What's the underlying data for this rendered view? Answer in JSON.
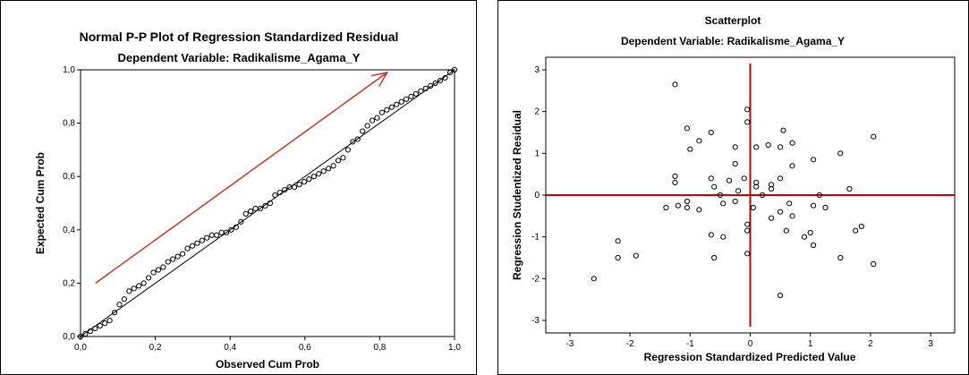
{
  "chart_data": [
    {
      "type": "scatter",
      "title": "Normal P-P Plot of Regression Standardized Residual",
      "subtitle": "Dependent Variable: Radikalisme_Agama_Y",
      "xlabel": "Observed Cum Prob",
      "ylabel": "Expected Cum Prob",
      "xlim": [
        0,
        1
      ],
      "ylim": [
        0,
        1
      ],
      "xticks": [
        "0,0",
        "0,2",
        "0,4",
        "0,6",
        "0,8",
        "1,0"
      ],
      "yticks": [
        "0,0",
        "0,2",
        "0,4",
        "0,6",
        "0,8",
        "1,0"
      ],
      "reference_line": [
        [
          0,
          0
        ],
        [
          1,
          1
        ]
      ],
      "annotation_arrow": {
        "from": [
          0.04,
          0.2
        ],
        "to": [
          0.82,
          0.99
        ],
        "color": "#c0392b"
      },
      "points": [
        [
          0.0,
          0.0
        ],
        [
          0.013,
          0.01
        ],
        [
          0.026,
          0.02
        ],
        [
          0.039,
          0.03
        ],
        [
          0.052,
          0.04
        ],
        [
          0.065,
          0.05
        ],
        [
          0.078,
          0.06
        ],
        [
          0.091,
          0.09
        ],
        [
          0.104,
          0.12
        ],
        [
          0.117,
          0.14
        ],
        [
          0.13,
          0.17
        ],
        [
          0.143,
          0.18
        ],
        [
          0.156,
          0.19
        ],
        [
          0.169,
          0.2
        ],
        [
          0.182,
          0.22
        ],
        [
          0.195,
          0.24
        ],
        [
          0.208,
          0.25
        ],
        [
          0.221,
          0.26
        ],
        [
          0.234,
          0.28
        ],
        [
          0.247,
          0.29
        ],
        [
          0.26,
          0.3
        ],
        [
          0.273,
          0.31
        ],
        [
          0.286,
          0.33
        ],
        [
          0.299,
          0.34
        ],
        [
          0.312,
          0.35
        ],
        [
          0.325,
          0.36
        ],
        [
          0.338,
          0.37
        ],
        [
          0.351,
          0.38
        ],
        [
          0.364,
          0.38
        ],
        [
          0.377,
          0.39
        ],
        [
          0.39,
          0.39
        ],
        [
          0.403,
          0.4
        ],
        [
          0.416,
          0.41
        ],
        [
          0.429,
          0.43
        ],
        [
          0.442,
          0.46
        ],
        [
          0.455,
          0.47
        ],
        [
          0.468,
          0.48
        ],
        [
          0.481,
          0.48
        ],
        [
          0.494,
          0.49
        ],
        [
          0.507,
          0.5
        ],
        [
          0.52,
          0.53
        ],
        [
          0.533,
          0.54
        ],
        [
          0.546,
          0.55
        ],
        [
          0.559,
          0.56
        ],
        [
          0.572,
          0.56
        ],
        [
          0.585,
          0.57
        ],
        [
          0.598,
          0.58
        ],
        [
          0.611,
          0.59
        ],
        [
          0.624,
          0.6
        ],
        [
          0.637,
          0.61
        ],
        [
          0.65,
          0.62
        ],
        [
          0.663,
          0.63
        ],
        [
          0.676,
          0.64
        ],
        [
          0.689,
          0.66
        ],
        [
          0.702,
          0.67
        ],
        [
          0.715,
          0.7
        ],
        [
          0.728,
          0.73
        ],
        [
          0.741,
          0.74
        ],
        [
          0.754,
          0.77
        ],
        [
          0.767,
          0.79
        ],
        [
          0.78,
          0.81
        ],
        [
          0.793,
          0.82
        ],
        [
          0.806,
          0.84
        ],
        [
          0.819,
          0.85
        ],
        [
          0.832,
          0.86
        ],
        [
          0.845,
          0.87
        ],
        [
          0.858,
          0.88
        ],
        [
          0.871,
          0.89
        ],
        [
          0.884,
          0.9
        ],
        [
          0.897,
          0.91
        ],
        [
          0.91,
          0.92
        ],
        [
          0.923,
          0.93
        ],
        [
          0.936,
          0.94
        ],
        [
          0.949,
          0.95
        ],
        [
          0.962,
          0.96
        ],
        [
          0.975,
          0.97
        ],
        [
          0.988,
          0.99
        ],
        [
          1.0,
          1.0
        ]
      ]
    },
    {
      "type": "scatter",
      "title": "Scatterplot",
      "subtitle": "Dependent Variable: Radikalisme_Agama_Y",
      "xlabel": "Regression Standardized Predicted Value",
      "ylabel": "Regression Studentized Residual",
      "xlim": [
        -3.4,
        3.4
      ],
      "ylim": [
        -3.3,
        3.3
      ],
      "xticks": [
        "-3",
        "-2",
        "-1",
        "0",
        "1",
        "2",
        "3"
      ],
      "yticks": [
        "-3",
        "-2",
        "-1",
        "0",
        "1",
        "2",
        "3"
      ],
      "reference_lines": {
        "x": 0,
        "y": 0,
        "color": "#c00000"
      },
      "points": [
        [
          -2.6,
          -2.0
        ],
        [
          -2.2,
          -1.1
        ],
        [
          -2.2,
          -1.5
        ],
        [
          -1.9,
          -1.45
        ],
        [
          -1.4,
          -0.3
        ],
        [
          -1.25,
          0.45
        ],
        [
          -1.25,
          0.3
        ],
        [
          -1.25,
          2.65
        ],
        [
          -1.2,
          -0.25
        ],
        [
          -1.05,
          -0.15
        ],
        [
          -1.05,
          -0.3
        ],
        [
          -1.05,
          1.6
        ],
        [
          -1.0,
          1.1
        ],
        [
          -0.85,
          1.3
        ],
        [
          -0.85,
          -0.35
        ],
        [
          -0.65,
          1.5
        ],
        [
          -0.65,
          0.4
        ],
        [
          -0.65,
          -0.95
        ],
        [
          -0.6,
          -1.5
        ],
        [
          -0.6,
          0.2
        ],
        [
          -0.5,
          0.0
        ],
        [
          -0.45,
          -0.2
        ],
        [
          -0.45,
          -1.0
        ],
        [
          -0.35,
          0.35
        ],
        [
          -0.25,
          0.75
        ],
        [
          -0.25,
          1.15
        ],
        [
          -0.25,
          -0.15
        ],
        [
          -0.2,
          0.1
        ],
        [
          -0.1,
          0.4
        ],
        [
          -0.05,
          -0.85
        ],
        [
          -0.05,
          -0.7
        ],
        [
          -0.05,
          -1.4
        ],
        [
          -0.05,
          1.75
        ],
        [
          -0.05,
          2.05
        ],
        [
          0.05,
          -0.3
        ],
        [
          0.1,
          0.2
        ],
        [
          0.1,
          0.3
        ],
        [
          0.1,
          1.15
        ],
        [
          0.2,
          0.0
        ],
        [
          0.3,
          1.2
        ],
        [
          0.35,
          -0.55
        ],
        [
          0.35,
          0.25
        ],
        [
          0.35,
          0.15
        ],
        [
          0.5,
          1.15
        ],
        [
          0.5,
          0.4
        ],
        [
          0.5,
          -0.4
        ],
        [
          0.5,
          -2.4
        ],
        [
          0.55,
          1.55
        ],
        [
          0.6,
          -0.85
        ],
        [
          0.65,
          -0.2
        ],
        [
          0.7,
          1.25
        ],
        [
          0.7,
          0.7
        ],
        [
          0.7,
          -0.5
        ],
        [
          0.9,
          -1.0
        ],
        [
          1.0,
          -0.9
        ],
        [
          1.05,
          -0.25
        ],
        [
          1.05,
          -1.2
        ],
        [
          1.05,
          0.85
        ],
        [
          1.15,
          0.0
        ],
        [
          1.25,
          -0.3
        ],
        [
          1.5,
          1.0
        ],
        [
          1.5,
          -1.5
        ],
        [
          1.65,
          0.15
        ],
        [
          1.75,
          -0.85
        ],
        [
          1.85,
          -0.75
        ],
        [
          2.05,
          1.4
        ],
        [
          2.05,
          -1.65
        ]
      ]
    }
  ]
}
